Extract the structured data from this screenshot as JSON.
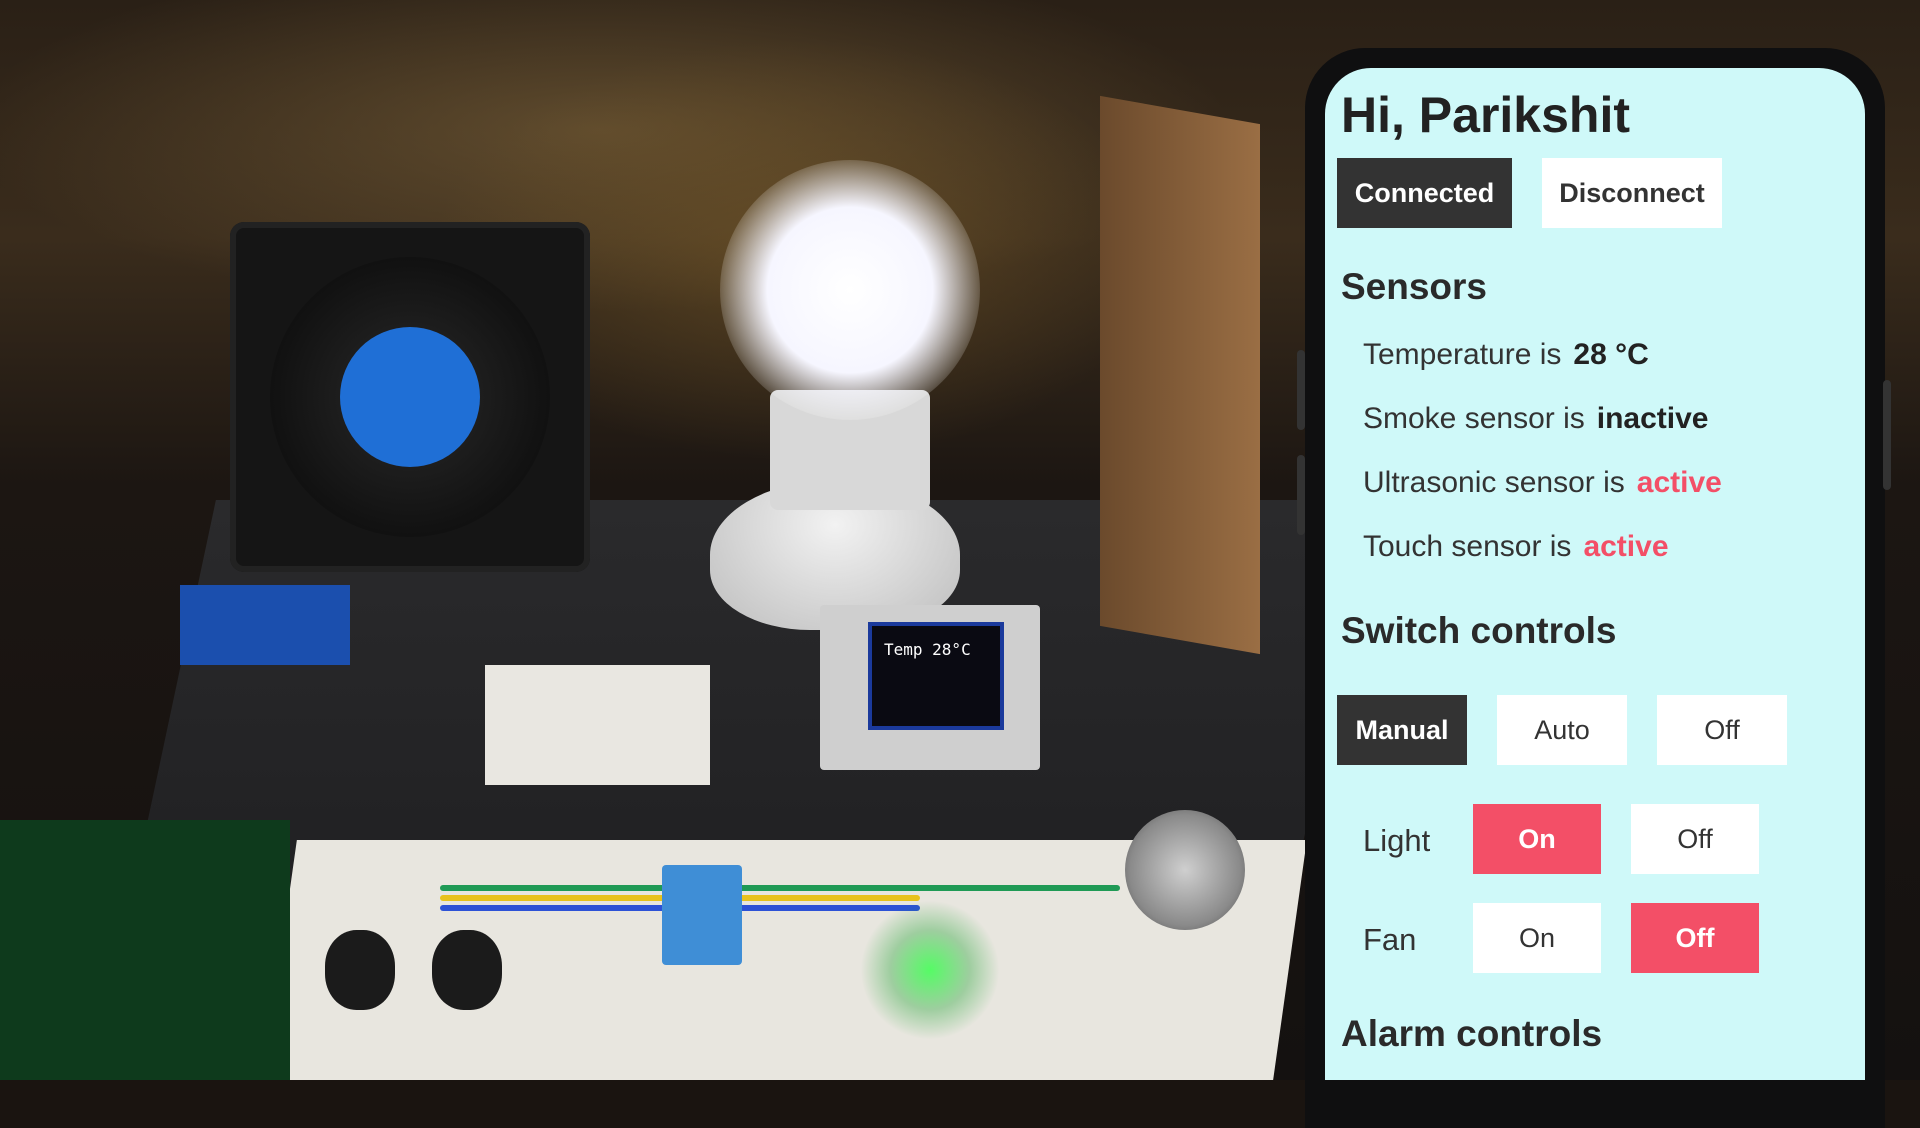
{
  "app": {
    "greeting": "Hi, Parikshit",
    "connection": {
      "connected_label": "Connected",
      "disconnect_label": "Disconnect"
    },
    "sensors": {
      "title": "Sensors",
      "items": [
        {
          "label": "Temperature is",
          "value": "28 °C",
          "state": "normal"
        },
        {
          "label": "Smoke sensor is",
          "value": "inactive",
          "state": "normal"
        },
        {
          "label": "Ultrasonic sensor is",
          "value": "active",
          "state": "active"
        },
        {
          "label": "Touch sensor is",
          "value": "active",
          "state": "active"
        }
      ]
    },
    "switch_controls": {
      "title": "Switch controls",
      "modes": [
        {
          "label": "Manual",
          "selected": true
        },
        {
          "label": "Auto",
          "selected": false
        },
        {
          "label": "Off",
          "selected": false
        }
      ],
      "devices": [
        {
          "name": "Light",
          "on_label": "On",
          "off_label": "Off",
          "state": "on"
        },
        {
          "name": "Fan",
          "on_label": "On",
          "off_label": "Off",
          "state": "off"
        }
      ]
    },
    "alarm_controls": {
      "title": "Alarm controls"
    }
  },
  "device_display": {
    "text": "Temp 28°C"
  },
  "colors": {
    "screen_bg": "#cff9f9",
    "accent_red": "#f34f67",
    "dark_button": "#333333"
  }
}
